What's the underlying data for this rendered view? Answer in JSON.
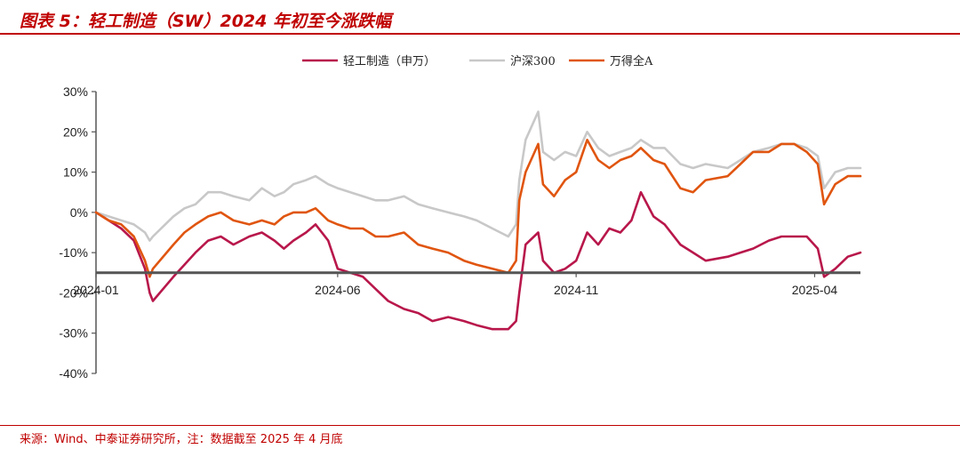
{
  "figure": {
    "title": "图表 5：轻工制造（SW）2024 年初至今涨跌幅",
    "source": "来源：Wind、中泰证券研究所，注：数据截至 2025 年 4 月底"
  },
  "colors": {
    "accent": "#c00000"
  },
  "chart_data": {
    "type": "line",
    "ylim": [
      -40,
      30
    ],
    "yticks": [
      -40,
      -30,
      -20,
      -10,
      0,
      10,
      20,
      30
    ],
    "ytick_labels": [
      "-40%",
      "-30%",
      "-20%",
      "-10%",
      "0%",
      "10%",
      "20%",
      "30%"
    ],
    "xtick_labels": [
      "2024-01",
      "2024-06",
      "2024-11",
      "2025-04"
    ],
    "xtick_dates": [
      "2024-01-02",
      "2024-06-03",
      "2024-11-01",
      "2025-04-01"
    ],
    "x_range": [
      "2024-01-02",
      "2025-04-30"
    ],
    "x_axis_at": -15,
    "legend_position": "top-center",
    "series": [
      {
        "name": "轻工制造（申万）",
        "color": "#b8174b",
        "points": [
          [
            "2024-01-02",
            0
          ],
          [
            "2024-01-10",
            -2
          ],
          [
            "2024-01-18",
            -4
          ],
          [
            "2024-01-26",
            -7
          ],
          [
            "2024-02-02",
            -14
          ],
          [
            "2024-02-05",
            -20
          ],
          [
            "2024-02-07",
            -22
          ],
          [
            "2024-02-20",
            -16
          ],
          [
            "2024-02-27",
            -13
          ],
          [
            "2024-03-05",
            -10
          ],
          [
            "2024-03-13",
            -7
          ],
          [
            "2024-03-21",
            -6
          ],
          [
            "2024-03-29",
            -8
          ],
          [
            "2024-04-08",
            -6
          ],
          [
            "2024-04-16",
            -5
          ],
          [
            "2024-04-24",
            -7
          ],
          [
            "2024-04-30",
            -9
          ],
          [
            "2024-05-06",
            -7
          ],
          [
            "2024-05-14",
            -5
          ],
          [
            "2024-05-20",
            -3
          ],
          [
            "2024-05-28",
            -7
          ],
          [
            "2024-06-03",
            -14
          ],
          [
            "2024-06-11",
            -15
          ],
          [
            "2024-06-19",
            -16
          ],
          [
            "2024-06-27",
            -19
          ],
          [
            "2024-07-05",
            -22
          ],
          [
            "2024-07-15",
            -24
          ],
          [
            "2024-07-24",
            -25
          ],
          [
            "2024-08-02",
            -27
          ],
          [
            "2024-08-12",
            -26
          ],
          [
            "2024-08-22",
            -27
          ],
          [
            "2024-08-30",
            -28
          ],
          [
            "2024-09-09",
            -29
          ],
          [
            "2024-09-19",
            -29
          ],
          [
            "2024-09-24",
            -27
          ],
          [
            "2024-09-26",
            -20
          ],
          [
            "2024-09-30",
            -8
          ],
          [
            "2024-10-08",
            -5
          ],
          [
            "2024-10-11",
            -12
          ],
          [
            "2024-10-18",
            -15
          ],
          [
            "2024-10-25",
            -14
          ],
          [
            "2024-11-01",
            -12
          ],
          [
            "2024-11-08",
            -5
          ],
          [
            "2024-11-15",
            -8
          ],
          [
            "2024-11-22",
            -4
          ],
          [
            "2024-11-29",
            -5
          ],
          [
            "2024-12-06",
            -2
          ],
          [
            "2024-12-12",
            5
          ],
          [
            "2024-12-20",
            -1
          ],
          [
            "2024-12-27",
            -3
          ],
          [
            "2025-01-06",
            -8
          ],
          [
            "2025-01-14",
            -10
          ],
          [
            "2025-01-22",
            -12
          ],
          [
            "2025-02-05",
            -11
          ],
          [
            "2025-02-13",
            -10
          ],
          [
            "2025-02-21",
            -9
          ],
          [
            "2025-03-03",
            -7
          ],
          [
            "2025-03-11",
            -6
          ],
          [
            "2025-03-19",
            -6
          ],
          [
            "2025-03-27",
            -6
          ],
          [
            "2025-04-03",
            -9
          ],
          [
            "2025-04-07",
            -16
          ],
          [
            "2025-04-14",
            -14
          ],
          [
            "2025-04-22",
            -11
          ],
          [
            "2025-04-30",
            -10
          ]
        ]
      },
      {
        "name": "沪深300",
        "color": "#c8c8c8",
        "points": [
          [
            "2024-01-02",
            0
          ],
          [
            "2024-01-10",
            -1
          ],
          [
            "2024-01-18",
            -2
          ],
          [
            "2024-01-26",
            -3
          ],
          [
            "2024-02-02",
            -5
          ],
          [
            "2024-02-05",
            -7
          ],
          [
            "2024-02-07",
            -6
          ],
          [
            "2024-02-20",
            -1
          ],
          [
            "2024-02-27",
            1
          ],
          [
            "2024-03-05",
            2
          ],
          [
            "2024-03-13",
            5
          ],
          [
            "2024-03-21",
            5
          ],
          [
            "2024-03-29",
            4
          ],
          [
            "2024-04-08",
            3
          ],
          [
            "2024-04-16",
            6
          ],
          [
            "2024-04-24",
            4
          ],
          [
            "2024-04-30",
            5
          ],
          [
            "2024-05-06",
            7
          ],
          [
            "2024-05-14",
            8
          ],
          [
            "2024-05-20",
            9
          ],
          [
            "2024-05-28",
            7
          ],
          [
            "2024-06-03",
            6
          ],
          [
            "2024-06-11",
            5
          ],
          [
            "2024-06-19",
            4
          ],
          [
            "2024-06-27",
            3
          ],
          [
            "2024-07-05",
            3
          ],
          [
            "2024-07-15",
            4
          ],
          [
            "2024-07-24",
            2
          ],
          [
            "2024-08-02",
            1
          ],
          [
            "2024-08-12",
            0
          ],
          [
            "2024-08-22",
            -1
          ],
          [
            "2024-08-30",
            -2
          ],
          [
            "2024-09-09",
            -4
          ],
          [
            "2024-09-19",
            -6
          ],
          [
            "2024-09-24",
            -3
          ],
          [
            "2024-09-26",
            8
          ],
          [
            "2024-09-30",
            18
          ],
          [
            "2024-10-08",
            25
          ],
          [
            "2024-10-11",
            15
          ],
          [
            "2024-10-18",
            13
          ],
          [
            "2024-10-25",
            15
          ],
          [
            "2024-11-01",
            14
          ],
          [
            "2024-11-08",
            20
          ],
          [
            "2024-11-15",
            16
          ],
          [
            "2024-11-22",
            14
          ],
          [
            "2024-11-29",
            15
          ],
          [
            "2024-12-06",
            16
          ],
          [
            "2024-12-12",
            18
          ],
          [
            "2024-12-20",
            16
          ],
          [
            "2024-12-27",
            16
          ],
          [
            "2025-01-06",
            12
          ],
          [
            "2025-01-14",
            11
          ],
          [
            "2025-01-22",
            12
          ],
          [
            "2025-02-05",
            11
          ],
          [
            "2025-02-13",
            13
          ],
          [
            "2025-02-21",
            15
          ],
          [
            "2025-03-03",
            16
          ],
          [
            "2025-03-11",
            17
          ],
          [
            "2025-03-19",
            17
          ],
          [
            "2025-03-27",
            16
          ],
          [
            "2025-04-03",
            14
          ],
          [
            "2025-04-07",
            6
          ],
          [
            "2025-04-14",
            10
          ],
          [
            "2025-04-22",
            11
          ],
          [
            "2025-04-30",
            11
          ]
        ]
      },
      {
        "name": "万得全A",
        "color": "#e05510",
        "points": [
          [
            "2024-01-02",
            0
          ],
          [
            "2024-01-10",
            -2
          ],
          [
            "2024-01-18",
            -3
          ],
          [
            "2024-01-26",
            -6
          ],
          [
            "2024-02-02",
            -12
          ],
          [
            "2024-02-05",
            -16
          ],
          [
            "2024-02-07",
            -14
          ],
          [
            "2024-02-20",
            -8
          ],
          [
            "2024-02-27",
            -5
          ],
          [
            "2024-03-05",
            -3
          ],
          [
            "2024-03-13",
            -1
          ],
          [
            "2024-03-21",
            0
          ],
          [
            "2024-03-29",
            -2
          ],
          [
            "2024-04-08",
            -3
          ],
          [
            "2024-04-16",
            -2
          ],
          [
            "2024-04-24",
            -3
          ],
          [
            "2024-04-30",
            -1
          ],
          [
            "2024-05-06",
            0
          ],
          [
            "2024-05-14",
            0
          ],
          [
            "2024-05-20",
            1
          ],
          [
            "2024-05-28",
            -2
          ],
          [
            "2024-06-03",
            -3
          ],
          [
            "2024-06-11",
            -4
          ],
          [
            "2024-06-19",
            -4
          ],
          [
            "2024-06-27",
            -6
          ],
          [
            "2024-07-05",
            -6
          ],
          [
            "2024-07-15",
            -5
          ],
          [
            "2024-07-24",
            -8
          ],
          [
            "2024-08-02",
            -9
          ],
          [
            "2024-08-12",
            -10
          ],
          [
            "2024-08-22",
            -12
          ],
          [
            "2024-08-30",
            -13
          ],
          [
            "2024-09-09",
            -14
          ],
          [
            "2024-09-19",
            -15
          ],
          [
            "2024-09-24",
            -12
          ],
          [
            "2024-09-26",
            3
          ],
          [
            "2024-09-30",
            10
          ],
          [
            "2024-10-08",
            17
          ],
          [
            "2024-10-11",
            7
          ],
          [
            "2024-10-18",
            4
          ],
          [
            "2024-10-25",
            8
          ],
          [
            "2024-11-01",
            10
          ],
          [
            "2024-11-08",
            18
          ],
          [
            "2024-11-15",
            13
          ],
          [
            "2024-11-22",
            11
          ],
          [
            "2024-11-29",
            13
          ],
          [
            "2024-12-06",
            14
          ],
          [
            "2024-12-12",
            16
          ],
          [
            "2024-12-20",
            13
          ],
          [
            "2024-12-27",
            12
          ],
          [
            "2025-01-06",
            6
          ],
          [
            "2025-01-14",
            5
          ],
          [
            "2025-01-22",
            8
          ],
          [
            "2025-02-05",
            9
          ],
          [
            "2025-02-13",
            12
          ],
          [
            "2025-02-21",
            15
          ],
          [
            "2025-03-03",
            15
          ],
          [
            "2025-03-11",
            17
          ],
          [
            "2025-03-19",
            17
          ],
          [
            "2025-03-27",
            15
          ],
          [
            "2025-04-03",
            12
          ],
          [
            "2025-04-07",
            2
          ],
          [
            "2025-04-14",
            7
          ],
          [
            "2025-04-22",
            9
          ],
          [
            "2025-04-30",
            9
          ]
        ]
      }
    ]
  }
}
